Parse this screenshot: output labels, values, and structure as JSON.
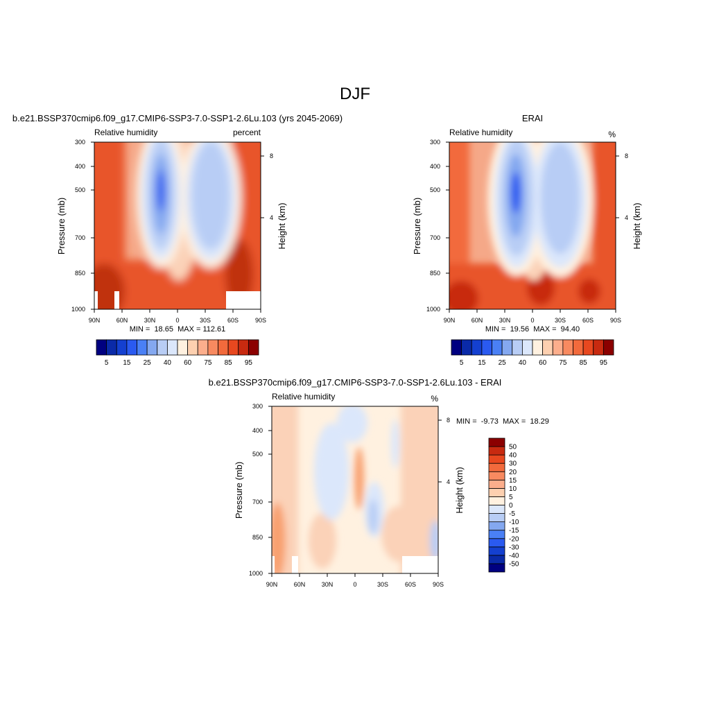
{
  "figure": {
    "title": "DJF"
  },
  "chart_data": [
    {
      "type": "heatmap",
      "panel": "model",
      "title": "b.e21.BSSP370cmip6.f09_g17.CMIP6-SSP3-7.0-SSP1-2.6Lu.103 (yrs 2045-2069)",
      "left_label": "Relative humidity",
      "right_label": "percent",
      "ylabel": "Pressure (mb)",
      "y2label": "Height (km)",
      "x_ticks": [
        "90N",
        "60N",
        "30N",
        "0",
        "30S",
        "60S",
        "90S"
      ],
      "x_range": [
        90,
        -90
      ],
      "y_ticks": [
        "300",
        "400",
        "500",
        "700",
        "850",
        "1000"
      ],
      "y_range": [
        300,
        1000
      ],
      "y2_ticks": [
        "8",
        "4"
      ],
      "stats": "MIN =  18.65  MAX = 112.61",
      "min": 18.65,
      "max": 112.61,
      "colorbar": {
        "orientation": "horizontal",
        "levels": [
          5,
          10,
          15,
          20,
          25,
          30,
          40,
          50,
          60,
          70,
          75,
          80,
          85,
          90,
          95
        ],
        "labels": [
          "5",
          "15",
          "25",
          "40",
          "60",
          "75",
          "85",
          "95"
        ],
        "colors": [
          "#000080",
          "#0a2aa8",
          "#1440d0",
          "#2a5af0",
          "#4a80f5",
          "#84a8f0",
          "#b8cdf5",
          "#dbe7fb",
          "#fff1e0",
          "#fdd0b0",
          "#fcae8c",
          "#f88a60",
          "#f26a3c",
          "#e8481f",
          "#c82a10",
          "#8b0000"
        ]
      }
    },
    {
      "type": "heatmap",
      "panel": "observations",
      "title": "ERAI",
      "left_label": "Relative humidity",
      "right_label": "%",
      "ylabel": "Pressure (mb)",
      "y2label": "Height (km)",
      "x_ticks": [
        "90N",
        "60N",
        "30N",
        "0",
        "30S",
        "60S",
        "90S"
      ],
      "x_range": [
        90,
        -90
      ],
      "y_ticks": [
        "300",
        "400",
        "500",
        "700",
        "850",
        "1000"
      ],
      "y_range": [
        300,
        1000
      ],
      "y2_ticks": [
        "8",
        "4"
      ],
      "stats": "MIN =  19.56  MAX =  94.40",
      "min": 19.56,
      "max": 94.4,
      "colorbar": {
        "orientation": "horizontal",
        "levels": [
          5,
          10,
          15,
          20,
          25,
          30,
          40,
          50,
          60,
          70,
          75,
          80,
          85,
          90,
          95
        ],
        "labels": [
          "5",
          "15",
          "25",
          "40",
          "60",
          "75",
          "85",
          "95"
        ],
        "colors": [
          "#000080",
          "#0a2aa8",
          "#1440d0",
          "#2a5af0",
          "#4a80f5",
          "#84a8f0",
          "#b8cdf5",
          "#dbe7fb",
          "#fff1e0",
          "#fdd0b0",
          "#fcae8c",
          "#f88a60",
          "#f26a3c",
          "#e8481f",
          "#c82a10",
          "#8b0000"
        ]
      }
    },
    {
      "type": "heatmap",
      "panel": "difference",
      "title": "b.e21.BSSP370cmip6.f09_g17.CMIP6-SSP3-7.0-SSP1-2.6Lu.103 - ERAI",
      "left_label": "Relative humidity",
      "right_label": "%",
      "ylabel": "Pressure (mb)",
      "y2label": "Height (km)",
      "x_ticks": [
        "90N",
        "60N",
        "30N",
        "0",
        "30S",
        "60S",
        "90S"
      ],
      "x_range": [
        90,
        -90
      ],
      "y_ticks": [
        "300",
        "400",
        "500",
        "700",
        "850",
        "1000"
      ],
      "y_range": [
        300,
        1000
      ],
      "y2_ticks": [
        "8",
        "4"
      ],
      "stats": "MIN =  -9.73  MAX =  18.29",
      "min": -9.73,
      "max": 18.29,
      "colorbar": {
        "orientation": "vertical",
        "levels": [
          -50,
          -40,
          -30,
          -20,
          -15,
          -10,
          -5,
          0,
          5,
          10,
          15,
          20,
          30,
          40,
          50
        ],
        "labels": [
          "-50",
          "-40",
          "-30",
          "-20",
          "-15",
          "-10",
          "-5",
          "0",
          "5",
          "10",
          "15",
          "20",
          "30",
          "40",
          "50"
        ],
        "colors": [
          "#000080",
          "#0a2aa8",
          "#1440d0",
          "#2a5af0",
          "#4a80f5",
          "#84a8f0",
          "#b8cdf5",
          "#dbe7fb",
          "#fff1e0",
          "#fdd0b0",
          "#fcae8c",
          "#f88a60",
          "#f26a3c",
          "#e8481f",
          "#c82a10",
          "#8b0000"
        ]
      }
    }
  ]
}
